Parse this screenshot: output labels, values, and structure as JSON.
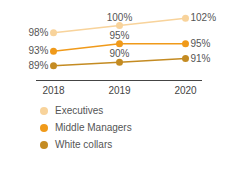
{
  "chart_data": {
    "type": "line",
    "categories": [
      "2018",
      "2019",
      "2020"
    ],
    "series": [
      {
        "name": "Executives",
        "color": "#f8d39b",
        "values": [
          98,
          100,
          102
        ],
        "value_labels": [
          "98%",
          "100%",
          "102%"
        ]
      },
      {
        "name": "Middle Managers",
        "color": "#f09a1a",
        "values": [
          93,
          95,
          95
        ],
        "value_labels": [
          "93%",
          "95%",
          "95%"
        ]
      },
      {
        "name": "White collars",
        "color": "#c48b22",
        "values": [
          89,
          90,
          91
        ],
        "value_labels": [
          "89%",
          "90%",
          "91%"
        ]
      }
    ],
    "ylim": [
      85,
      103
    ],
    "tick_labels": "x",
    "data_labels": true,
    "marker": "circle",
    "legend": "bottom"
  }
}
